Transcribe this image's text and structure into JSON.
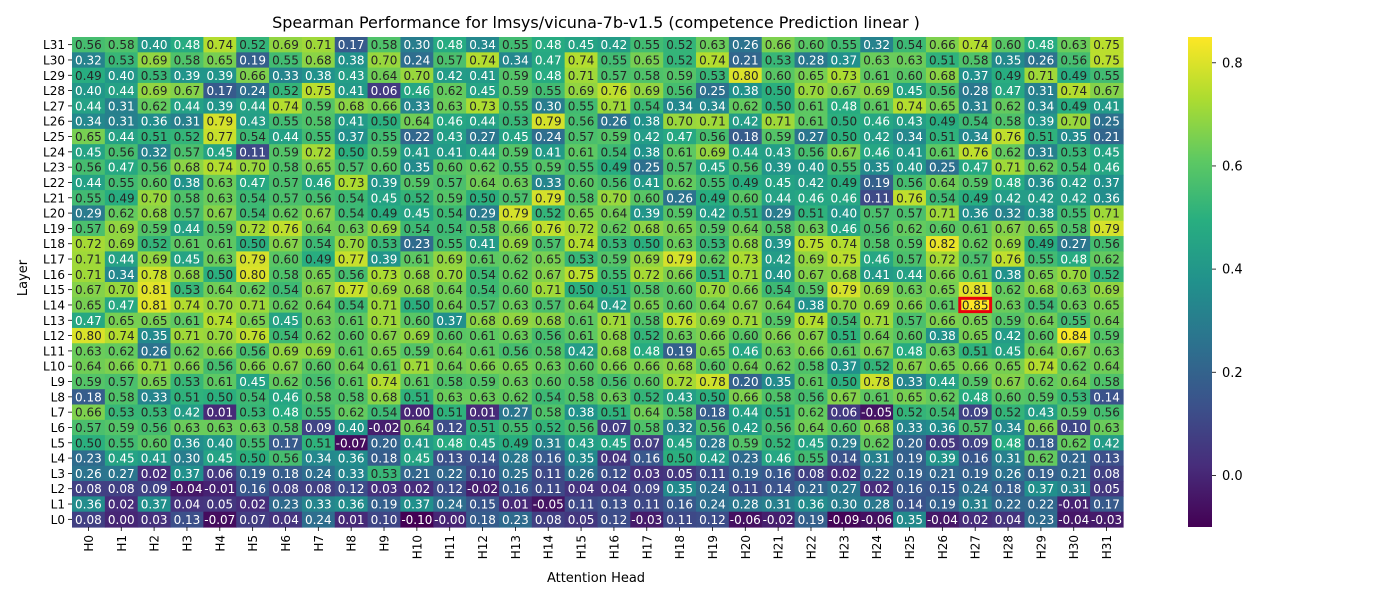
{
  "chart_data": {
    "type": "heatmap",
    "title": "Spearman Performance for lmsys/vicuna-7b-v1.5 (competence Prediction linear )",
    "xlabel": "Attention Head",
    "ylabel": "Layer",
    "x_categories": [
      "H0",
      "H1",
      "H2",
      "H3",
      "H4",
      "H5",
      "H6",
      "H7",
      "H8",
      "H9",
      "H10",
      "H11",
      "H12",
      "H13",
      "H14",
      "H15",
      "H16",
      "H17",
      "H18",
      "H19",
      "H20",
      "H21",
      "H22",
      "H23",
      "H24",
      "H25",
      "H26",
      "H27",
      "H28",
      "H29",
      "H30",
      "H31"
    ],
    "y_categories": [
      "L31",
      "L30",
      "L29",
      "L28",
      "L27",
      "L26",
      "L25",
      "L24",
      "L23",
      "L22",
      "L21",
      "L20",
      "L19",
      "L18",
      "L17",
      "L16",
      "L15",
      "L14",
      "L13",
      "L12",
      "L11",
      "L10",
      "L9",
      "L8",
      "L7",
      "L6",
      "L5",
      "L4",
      "L3",
      "L2",
      "L1",
      "L0"
    ],
    "values": [
      [
        "0.56",
        "0.58",
        "0.40",
        "0.48",
        "0.74",
        "0.52",
        "0.69",
        "0.71",
        "0.17",
        "0.58",
        "0.30",
        "0.48",
        "0.34",
        "0.55",
        "0.48",
        "0.45",
        "0.42",
        "0.55",
        "0.52",
        "0.63",
        "0.26",
        "0.66",
        "0.60",
        "0.55",
        "0.32",
        "0.54",
        "0.66",
        "0.74",
        "0.60",
        "0.48",
        "0.63",
        "0.75"
      ],
      [
        "0.32",
        "0.53",
        "0.69",
        "0.58",
        "0.65",
        "0.19",
        "0.55",
        "0.68",
        "0.38",
        "0.70",
        "0.24",
        "0.57",
        "0.74",
        "0.34",
        "0.47",
        "0.74",
        "0.55",
        "0.65",
        "0.52",
        "0.74",
        "0.21",
        "0.53",
        "0.28",
        "0.37",
        "0.63",
        "0.63",
        "0.51",
        "0.58",
        "0.35",
        "0.26",
        "0.56",
        "0.75"
      ],
      [
        "0.49",
        "0.40",
        "0.53",
        "0.39",
        "0.39",
        "0.66",
        "0.33",
        "0.38",
        "0.43",
        "0.64",
        "0.70",
        "0.42",
        "0.41",
        "0.59",
        "0.48",
        "0.71",
        "0.57",
        "0.58",
        "0.59",
        "0.53",
        "0.80",
        "0.60",
        "0.65",
        "0.73",
        "0.61",
        "0.60",
        "0.68",
        "0.37",
        "0.49",
        "0.71",
        "0.49",
        "0.55"
      ],
      [
        "0.40",
        "0.44",
        "0.69",
        "0.67",
        "0.17",
        "0.24",
        "0.52",
        "0.75",
        "0.41",
        "0.06",
        "0.46",
        "0.62",
        "0.45",
        "0.59",
        "0.55",
        "0.69",
        "0.76",
        "0.69",
        "0.56",
        "0.25",
        "0.38",
        "0.50",
        "0.70",
        "0.67",
        "0.69",
        "0.45",
        "0.56",
        "0.28",
        "0.47",
        "0.31",
        "0.74",
        "0.67"
      ],
      [
        "0.44",
        "0.31",
        "0.62",
        "0.44",
        "0.39",
        "0.44",
        "0.74",
        "0.59",
        "0.68",
        "0.66",
        "0.33",
        "0.63",
        "0.73",
        "0.55",
        "0.30",
        "0.55",
        "0.71",
        "0.54",
        "0.34",
        "0.34",
        "0.62",
        "0.50",
        "0.61",
        "0.48",
        "0.61",
        "0.74",
        "0.65",
        "0.31",
        "0.62",
        "0.34",
        "0.49",
        "0.41"
      ],
      [
        "0.34",
        "0.31",
        "0.36",
        "0.31",
        "0.79",
        "0.43",
        "0.55",
        "0.58",
        "0.41",
        "0.50",
        "0.64",
        "0.46",
        "0.44",
        "0.53",
        "0.79",
        "0.56",
        "0.26",
        "0.38",
        "0.70",
        "0.71",
        "0.42",
        "0.71",
        "0.61",
        "0.50",
        "0.46",
        "0.43",
        "0.49",
        "0.54",
        "0.58",
        "0.39",
        "0.70",
        "0.25"
      ],
      [
        "0.65",
        "0.44",
        "0.51",
        "0.52",
        "0.77",
        "0.54",
        "0.44",
        "0.55",
        "0.37",
        "0.55",
        "0.22",
        "0.43",
        "0.27",
        "0.45",
        "0.24",
        "0.57",
        "0.59",
        "0.42",
        "0.47",
        "0.56",
        "0.18",
        "0.59",
        "0.27",
        "0.50",
        "0.42",
        "0.34",
        "0.51",
        "0.34",
        "0.76",
        "0.51",
        "0.35",
        "0.21"
      ],
      [
        "0.45",
        "0.56",
        "0.32",
        "0.57",
        "0.45",
        "0.11",
        "0.59",
        "0.72",
        "0.50",
        "0.59",
        "0.41",
        "0.41",
        "0.44",
        "0.59",
        "0.41",
        "0.61",
        "0.54",
        "0.38",
        "0.61",
        "0.69",
        "0.44",
        "0.43",
        "0.56",
        "0.67",
        "0.46",
        "0.41",
        "0.61",
        "0.76",
        "0.62",
        "0.31",
        "0.53",
        "0.45"
      ],
      [
        "0.56",
        "0.47",
        "0.56",
        "0.68",
        "0.74",
        "0.70",
        "0.58",
        "0.65",
        "0.57",
        "0.60",
        "0.35",
        "0.60",
        "0.62",
        "0.55",
        "0.59",
        "0.55",
        "0.49",
        "0.25",
        "0.57",
        "0.45",
        "0.56",
        "0.39",
        "0.40",
        "0.55",
        "0.35",
        "0.40",
        "0.25",
        "0.47",
        "0.71",
        "0.62",
        "0.54",
        "0.46"
      ],
      [
        "0.44",
        "0.55",
        "0.60",
        "0.38",
        "0.63",
        "0.47",
        "0.57",
        "0.46",
        "0.73",
        "0.39",
        "0.59",
        "0.57",
        "0.64",
        "0.63",
        "0.33",
        "0.60",
        "0.56",
        "0.41",
        "0.62",
        "0.55",
        "0.49",
        "0.45",
        "0.42",
        "0.49",
        "0.19",
        "0.56",
        "0.64",
        "0.59",
        "0.48",
        "0.36",
        "0.42",
        "0.37"
      ],
      [
        "0.55",
        "0.49",
        "0.70",
        "0.58",
        "0.63",
        "0.54",
        "0.57",
        "0.56",
        "0.54",
        "0.45",
        "0.52",
        "0.59",
        "0.50",
        "0.57",
        "0.79",
        "0.58",
        "0.70",
        "0.60",
        "0.26",
        "0.49",
        "0.60",
        "0.44",
        "0.46",
        "0.46",
        "0.11",
        "0.76",
        "0.54",
        "0.49",
        "0.42",
        "0.42",
        "0.42",
        "0.36"
      ],
      [
        "0.29",
        "0.62",
        "0.68",
        "0.57",
        "0.67",
        "0.54",
        "0.62",
        "0.67",
        "0.54",
        "0.49",
        "0.45",
        "0.54",
        "0.29",
        "0.79",
        "0.52",
        "0.65",
        "0.64",
        "0.39",
        "0.59",
        "0.42",
        "0.51",
        "0.29",
        "0.51",
        "0.40",
        "0.57",
        "0.57",
        "0.71",
        "0.36",
        "0.32",
        "0.38",
        "0.55",
        "0.71"
      ],
      [
        "0.57",
        "0.69",
        "0.59",
        "0.44",
        "0.59",
        "0.72",
        "0.76",
        "0.64",
        "0.63",
        "0.69",
        "0.54",
        "0.54",
        "0.58",
        "0.66",
        "0.76",
        "0.72",
        "0.62",
        "0.68",
        "0.65",
        "0.59",
        "0.64",
        "0.58",
        "0.63",
        "0.46",
        "0.56",
        "0.62",
        "0.60",
        "0.61",
        "0.67",
        "0.65",
        "0.58",
        "0.79"
      ],
      [
        "0.72",
        "0.69",
        "0.52",
        "0.61",
        "0.61",
        "0.50",
        "0.67",
        "0.54",
        "0.70",
        "0.53",
        "0.23",
        "0.55",
        "0.41",
        "0.69",
        "0.57",
        "0.74",
        "0.53",
        "0.50",
        "0.63",
        "0.53",
        "0.68",
        "0.39",
        "0.75",
        "0.74",
        "0.58",
        "0.59",
        "0.82",
        "0.62",
        "0.69",
        "0.49",
        "0.27",
        "0.56"
      ],
      [
        "0.71",
        "0.44",
        "0.69",
        "0.45",
        "0.63",
        "0.79",
        "0.60",
        "0.49",
        "0.77",
        "0.39",
        "0.61",
        "0.69",
        "0.61",
        "0.62",
        "0.65",
        "0.53",
        "0.59",
        "0.69",
        "0.79",
        "0.62",
        "0.73",
        "0.42",
        "0.69",
        "0.75",
        "0.46",
        "0.57",
        "0.72",
        "0.57",
        "0.76",
        "0.55",
        "0.48",
        "0.62"
      ],
      [
        "0.71",
        "0.34",
        "0.78",
        "0.68",
        "0.50",
        "0.80",
        "0.58",
        "0.65",
        "0.56",
        "0.73",
        "0.68",
        "0.70",
        "0.54",
        "0.62",
        "0.67",
        "0.75",
        "0.55",
        "0.72",
        "0.66",
        "0.51",
        "0.71",
        "0.40",
        "0.67",
        "0.68",
        "0.41",
        "0.44",
        "0.66",
        "0.61",
        "0.38",
        "0.65",
        "0.70",
        "0.52"
      ],
      [
        "0.67",
        "0.70",
        "0.81",
        "0.53",
        "0.64",
        "0.62",
        "0.54",
        "0.67",
        "0.77",
        "0.69",
        "0.68",
        "0.64",
        "0.54",
        "0.60",
        "0.71",
        "0.50",
        "0.51",
        "0.58",
        "0.60",
        "0.70",
        "0.66",
        "0.54",
        "0.59",
        "0.79",
        "0.69",
        "0.63",
        "0.65",
        "0.81",
        "0.62",
        "0.68",
        "0.63",
        "0.69"
      ],
      [
        "0.65",
        "0.47",
        "0.81",
        "0.74",
        "0.70",
        "0.71",
        "0.62",
        "0.64",
        "0.54",
        "0.71",
        "0.50",
        "0.64",
        "0.57",
        "0.63",
        "0.57",
        "0.64",
        "0.42",
        "0.65",
        "0.60",
        "0.64",
        "0.67",
        "0.64",
        "0.38",
        "0.70",
        "0.69",
        "0.66",
        "0.61",
        "0.85",
        "0.63",
        "0.54",
        "0.63",
        "0.65"
      ],
      [
        "0.47",
        "0.65",
        "0.65",
        "0.61",
        "0.74",
        "0.65",
        "0.45",
        "0.63",
        "0.61",
        "0.71",
        "0.60",
        "0.37",
        "0.68",
        "0.69",
        "0.68",
        "0.61",
        "0.71",
        "0.58",
        "0.76",
        "0.69",
        "0.71",
        "0.59",
        "0.74",
        "0.54",
        "0.71",
        "0.57",
        "0.66",
        "0.65",
        "0.59",
        "0.64",
        "0.55",
        "0.64"
      ],
      [
        "0.80",
        "0.74",
        "0.35",
        "0.71",
        "0.70",
        "0.76",
        "0.54",
        "0.62",
        "0.60",
        "0.67",
        "0.69",
        "0.60",
        "0.61",
        "0.63",
        "0.56",
        "0.61",
        "0.68",
        "0.52",
        "0.63",
        "0.66",
        "0.60",
        "0.66",
        "0.67",
        "0.51",
        "0.64",
        "0.60",
        "0.38",
        "0.65",
        "0.42",
        "0.60",
        "0.84",
        "0.59"
      ],
      [
        "0.63",
        "0.62",
        "0.26",
        "0.62",
        "0.66",
        "0.56",
        "0.69",
        "0.69",
        "0.61",
        "0.65",
        "0.59",
        "0.64",
        "0.61",
        "0.56",
        "0.58",
        "0.42",
        "0.68",
        "0.48",
        "0.19",
        "0.65",
        "0.46",
        "0.63",
        "0.66",
        "0.61",
        "0.67",
        "0.48",
        "0.63",
        "0.51",
        "0.45",
        "0.64",
        "0.67",
        "0.63"
      ],
      [
        "0.64",
        "0.66",
        "0.71",
        "0.66",
        "0.56",
        "0.66",
        "0.67",
        "0.60",
        "0.64",
        "0.61",
        "0.71",
        "0.64",
        "0.66",
        "0.65",
        "0.63",
        "0.60",
        "0.66",
        "0.66",
        "0.68",
        "0.60",
        "0.64",
        "0.62",
        "0.58",
        "0.37",
        "0.52",
        "0.67",
        "0.65",
        "0.66",
        "0.65",
        "0.74",
        "0.62",
        "0.64"
      ],
      [
        "0.59",
        "0.57",
        "0.65",
        "0.53",
        "0.61",
        "0.45",
        "0.62",
        "0.56",
        "0.61",
        "0.74",
        "0.61",
        "0.58",
        "0.59",
        "0.63",
        "0.60",
        "0.58",
        "0.56",
        "0.60",
        "0.72",
        "0.78",
        "0.20",
        "0.35",
        "0.61",
        "0.50",
        "0.78",
        "0.33",
        "0.44",
        "0.59",
        "0.67",
        "0.62",
        "0.64",
        "0.58"
      ],
      [
        "0.18",
        "0.58",
        "0.33",
        "0.51",
        "0.50",
        "0.54",
        "0.46",
        "0.58",
        "0.58",
        "0.68",
        "0.51",
        "0.63",
        "0.63",
        "0.62",
        "0.54",
        "0.58",
        "0.63",
        "0.52",
        "0.43",
        "0.50",
        "0.66",
        "0.58",
        "0.56",
        "0.67",
        "0.61",
        "0.65",
        "0.62",
        "0.48",
        "0.60",
        "0.59",
        "0.53",
        "0.14"
      ],
      [
        "0.66",
        "0.53",
        "0.53",
        "0.42",
        "0.01",
        "0.53",
        "0.48",
        "0.55",
        "0.62",
        "0.54",
        "0.00",
        "0.51",
        "0.01",
        "0.27",
        "0.58",
        "0.38",
        "0.51",
        "0.64",
        "0.58",
        "0.18",
        "0.44",
        "0.51",
        "0.62",
        "0.06",
        "-0.05",
        "0.52",
        "0.54",
        "0.09",
        "0.52",
        "0.43",
        "0.59",
        "0.56"
      ],
      [
        "0.57",
        "0.59",
        "0.56",
        "0.63",
        "0.63",
        "0.63",
        "0.58",
        "0.09",
        "0.40",
        "-0.02",
        "0.64",
        "0.12",
        "0.51",
        "0.55",
        "0.52",
        "0.56",
        "0.07",
        "0.58",
        "0.32",
        "0.56",
        "0.42",
        "0.56",
        "0.64",
        "0.60",
        "0.68",
        "0.33",
        "0.36",
        "0.57",
        "0.34",
        "0.66",
        "0.10",
        "0.63"
      ],
      [
        "0.50",
        "0.55",
        "0.60",
        "0.36",
        "0.40",
        "0.55",
        "0.17",
        "0.51",
        "-0.07",
        "0.20",
        "0.41",
        "0.48",
        "0.45",
        "0.49",
        "0.31",
        "0.43",
        "0.45",
        "0.07",
        "0.45",
        "0.28",
        "0.59",
        "0.52",
        "0.45",
        "0.29",
        "0.62",
        "0.20",
        "0.05",
        "0.09",
        "0.48",
        "0.18",
        "0.62",
        "0.42"
      ],
      [
        "0.23",
        "0.45",
        "0.41",
        "0.30",
        "0.45",
        "0.50",
        "0.56",
        "0.34",
        "0.36",
        "0.18",
        "0.45",
        "0.13",
        "0.14",
        "0.28",
        "0.16",
        "0.35",
        "0.04",
        "0.16",
        "0.50",
        "0.42",
        "0.23",
        "0.46",
        "0.55",
        "0.14",
        "0.31",
        "0.19",
        "0.39",
        "0.16",
        "0.31",
        "0.62",
        "0.21",
        "0.13"
      ],
      [
        "0.26",
        "0.27",
        "0.02",
        "0.37",
        "0.06",
        "0.19",
        "0.18",
        "0.24",
        "0.33",
        "0.53",
        "0.21",
        "0.22",
        "0.10",
        "0.25",
        "0.11",
        "0.26",
        "0.12",
        "0.03",
        "0.05",
        "0.11",
        "0.19",
        "0.16",
        "0.08",
        "0.02",
        "0.22",
        "0.19",
        "0.21",
        "0.19",
        "0.26",
        "0.19",
        "0.21",
        "0.08"
      ],
      [
        "0.08",
        "0.08",
        "0.09",
        "-0.04",
        "-0.01",
        "0.16",
        "0.08",
        "0.08",
        "0.12",
        "0.03",
        "0.02",
        "0.12",
        "-0.02",
        "0.16",
        "0.11",
        "0.04",
        "0.04",
        "0.09",
        "0.35",
        "0.24",
        "0.11",
        "0.14",
        "0.21",
        "0.27",
        "0.02",
        "0.16",
        "0.15",
        "0.24",
        "0.18",
        "0.37",
        "0.31",
        "0.05"
      ],
      [
        "0.36",
        "0.02",
        "0.37",
        "0.04",
        "0.05",
        "0.02",
        "0.23",
        "0.33",
        "0.36",
        "0.19",
        "0.37",
        "0.24",
        "0.15",
        "0.01",
        "-0.05",
        "0.11",
        "0.13",
        "0.11",
        "0.16",
        "0.24",
        "0.28",
        "0.31",
        "0.36",
        "0.30",
        "0.28",
        "0.14",
        "0.19",
        "0.31",
        "0.22",
        "0.22",
        "-0.01",
        "0.17"
      ],
      [
        "0.08",
        "0.00",
        "0.03",
        "0.13",
        "-0.07",
        "0.07",
        "0.04",
        "0.24",
        "0.01",
        "0.10",
        "-0.10",
        "-0.00",
        "0.18",
        "0.23",
        "0.08",
        "0.05",
        "0.12",
        "-0.03",
        "0.11",
        "0.12",
        "-0.06",
        "-0.02",
        "0.19",
        "-0.09",
        "-0.06",
        "0.35",
        "-0.04",
        "0.02",
        "0.04",
        "0.23",
        "-0.04",
        "-0.03"
      ]
    ],
    "vmin": -0.1,
    "vmax": 0.85,
    "colormap": "viridis",
    "highlight": {
      "layer": "L14",
      "head": "H27",
      "color": "#e8000b"
    },
    "colorbar_ticks": [
      "0.0",
      "0.2",
      "0.4",
      "0.6",
      "0.8"
    ],
    "annotation_text_colors": {
      "light": "#ffffff",
      "dark": "#262626"
    }
  }
}
